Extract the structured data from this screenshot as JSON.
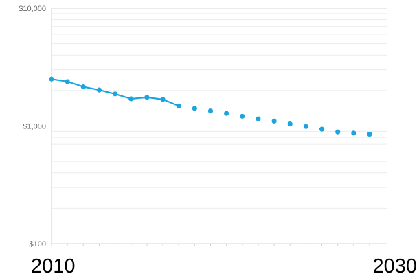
{
  "chart_data": {
    "type": "line",
    "title": "",
    "xlabel": "",
    "ylabel": "",
    "y_scale": "log",
    "ylim": [
      100,
      10000
    ],
    "xlim": [
      2010,
      2030
    ],
    "y_tick_labels": [
      {
        "value": 10000,
        "label": "$10,000"
      },
      {
        "value": 1000,
        "label": "$1,000"
      },
      {
        "value": 100,
        "label": "$100"
      }
    ],
    "x_tick_labels": [
      {
        "value": 2010,
        "label": "2010"
      },
      {
        "value": 2030,
        "label": "2030"
      }
    ],
    "grid": true,
    "series": [
      {
        "style": "solid-line-with-markers",
        "color": "#1AA5E0",
        "x": [
          2010,
          2011,
          2012,
          2013,
          2014,
          2015,
          2016,
          2017,
          2018
        ],
        "y": [
          2500,
          2380,
          2150,
          2020,
          1870,
          1700,
          1750,
          1680,
          1480
        ]
      },
      {
        "style": "markers-only",
        "color": "#1AA5E0",
        "x": [
          2019,
          2020,
          2021,
          2022,
          2023,
          2024,
          2025,
          2026,
          2027,
          2028,
          2029,
          2030
        ],
        "y": [
          1410,
          1340,
          1280,
          1210,
          1150,
          1100,
          1040,
          990,
          940,
          890,
          870,
          850
        ]
      }
    ]
  }
}
